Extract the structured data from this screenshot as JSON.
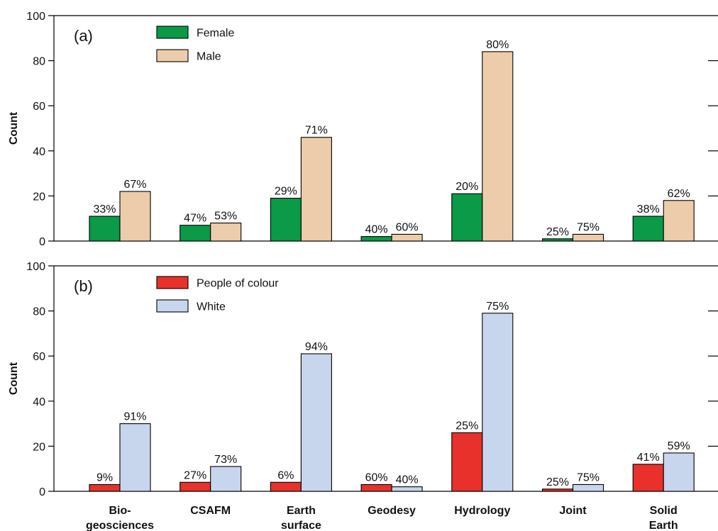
{
  "chart_data": [
    {
      "type": "bar",
      "panel_label": "(a)",
      "ylabel": "Count",
      "ylim": [
        0,
        100
      ],
      "yticks": [
        0,
        20,
        40,
        60,
        80,
        100
      ],
      "categories": [
        "Bio-\ngeosciences",
        "CSAFM",
        "Earth\nsurface",
        "Geodesy",
        "Hydrology",
        "Joint",
        "Solid\nEarth"
      ],
      "legend_position": "top-left",
      "series": [
        {
          "name": "Female",
          "color": "#0a9a48",
          "values": [
            11,
            7,
            19,
            2,
            21,
            1,
            11
          ],
          "labels": [
            "33%",
            "47%",
            "29%",
            "40%",
            "20%",
            "25%",
            "38%"
          ]
        },
        {
          "name": "Male",
          "color": "#ecccaa",
          "values": [
            22,
            8,
            46,
            3,
            84,
            3,
            18
          ],
          "labels": [
            "67%",
            "53%",
            "71%",
            "60%",
            "80%",
            "75%",
            "62%"
          ]
        }
      ]
    },
    {
      "type": "bar",
      "panel_label": "(b)",
      "ylabel": "Count",
      "ylim": [
        0,
        100
      ],
      "yticks": [
        0,
        20,
        40,
        60,
        80,
        100
      ],
      "categories": [
        "Bio-\ngeosciences",
        "CSAFM",
        "Earth\nsurface",
        "Geodesy",
        "Hydrology",
        "Joint",
        "Solid\nEarth"
      ],
      "legend_position": "top-left",
      "series": [
        {
          "name": "People of colour",
          "color": "#e8312b",
          "values": [
            3,
            4,
            4,
            3,
            26,
            1,
            12
          ],
          "labels": [
            "9%",
            "27%",
            "6%",
            "60%",
            "25%",
            "25%",
            "41%"
          ]
        },
        {
          "name": "White",
          "color": "#c7d6ec",
          "values": [
            30,
            11,
            61,
            2,
            79,
            3,
            17
          ],
          "labels": [
            "91%",
            "73%",
            "94%",
            "40%",
            "75%",
            "75%",
            "59%"
          ]
        }
      ]
    }
  ]
}
